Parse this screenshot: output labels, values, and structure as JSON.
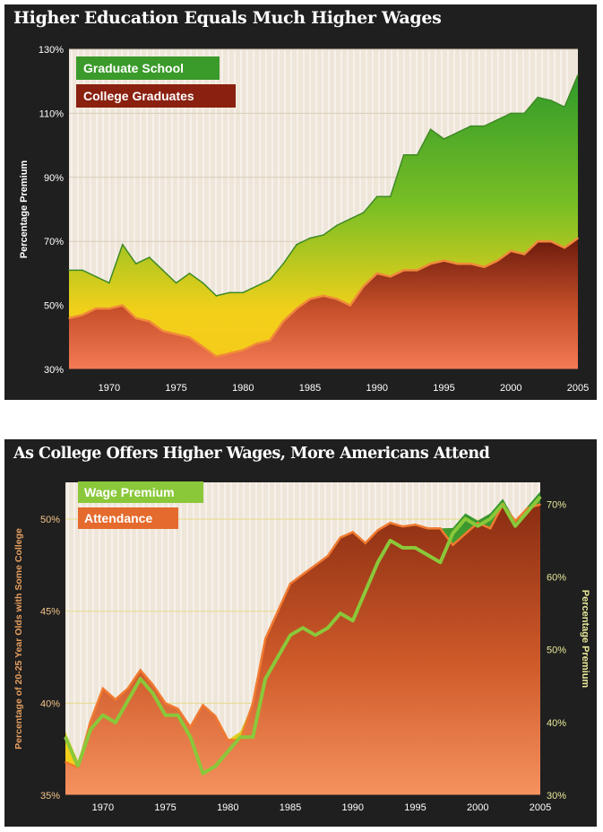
{
  "chart_data": [
    {
      "type": "area",
      "title": "Higher Education Equals Much Higher Wages",
      "xlabel": "",
      "ylabel": "Percentage Premium",
      "xlim": [
        1967,
        2005
      ],
      "ylim": [
        30,
        130
      ],
      "yticks": [
        "30%",
        "50%",
        "70%",
        "90%",
        "110%",
        "130%"
      ],
      "ytick_values": [
        30,
        50,
        70,
        90,
        110,
        130
      ],
      "xticks": [
        "1970",
        "1975",
        "1980",
        "1985",
        "1990",
        "1995",
        "2000",
        "2005"
      ],
      "xtick_values": [
        1970,
        1975,
        1980,
        1985,
        1990,
        1995,
        2000,
        2005
      ],
      "legend": [
        "Graduate School",
        "College Graduates"
      ],
      "colors": {
        "graduate": "#3a9a2a",
        "college": "#8a2010",
        "grad_light": "#f2d01a",
        "college_light": "#f37a55"
      },
      "x": [
        1967,
        1968,
        1969,
        1970,
        1971,
        1972,
        1973,
        1974,
        1975,
        1976,
        1977,
        1978,
        1979,
        1980,
        1981,
        1982,
        1983,
        1984,
        1985,
        1986,
        1987,
        1988,
        1989,
        1990,
        1991,
        1992,
        1993,
        1994,
        1995,
        1996,
        1997,
        1998,
        1999,
        2000,
        2001,
        2002,
        2003,
        2004,
        2005
      ],
      "series": [
        {
          "name": "Graduate School",
          "values": [
            61,
            61,
            59,
            57,
            69,
            63,
            65,
            61,
            57,
            60,
            57,
            53,
            54,
            54,
            56,
            58,
            63,
            69,
            71,
            72,
            75,
            77,
            79,
            84,
            84,
            97,
            97,
            105,
            102,
            104,
            106,
            106,
            108,
            110,
            110,
            115,
            114,
            112,
            122
          ]
        },
        {
          "name": "College Graduates",
          "values": [
            46,
            47,
            49,
            49,
            50,
            46,
            45,
            42,
            41,
            40,
            37,
            34,
            35,
            36,
            38,
            39,
            45,
            49,
            52,
            53,
            52,
            50,
            56,
            60,
            59,
            61,
            61,
            63,
            64,
            63,
            63,
            62,
            64,
            67,
            66,
            70,
            70,
            68,
            71
          ]
        }
      ]
    },
    {
      "type": "area",
      "title": "As College Offers Higher Wages, More Americans Attend",
      "xlabel": "",
      "ylabel": "Percentage of 20-25 Year Olds with Some College",
      "ylabel_right": "Percentage Premium",
      "xlim": [
        1967,
        2005
      ],
      "ylim": [
        35,
        52
      ],
      "ylim_right": [
        30,
        73
      ],
      "yticks": [
        "35%",
        "40%",
        "45%",
        "50%"
      ],
      "ytick_values": [
        35,
        40,
        45,
        50
      ],
      "yticks_right": [
        "30%",
        "40%",
        "50%",
        "60%",
        "70%"
      ],
      "ytick_values_right": [
        30,
        40,
        50,
        60,
        70
      ],
      "xticks": [
        "1970",
        "1975",
        "1980",
        "1985",
        "1990",
        "1995",
        "2000",
        "2005"
      ],
      "xtick_values": [
        1970,
        1975,
        1980,
        1985,
        1990,
        1995,
        2000,
        2005
      ],
      "legend": [
        "Wage Premium",
        "Attendance"
      ],
      "colors": {
        "premium": "#8ac83a",
        "attendance": "#e56a2d",
        "premium_dark": "#2e8f2e",
        "premium_light": "#f2d01a"
      },
      "x": [
        1967,
        1968,
        1969,
        1970,
        1971,
        1972,
        1973,
        1974,
        1975,
        1976,
        1977,
        1978,
        1979,
        1980,
        1981,
        1982,
        1983,
        1984,
        1985,
        1986,
        1987,
        1988,
        1989,
        1990,
        1991,
        1992,
        1993,
        1994,
        1995,
        1996,
        1997,
        1998,
        1999,
        2000,
        2001,
        2002,
        2003,
        2004,
        2005
      ],
      "series": [
        {
          "name": "Wage Premium",
          "axis": "right",
          "values": [
            38,
            34,
            39,
            41,
            40,
            43,
            46,
            44,
            41,
            41,
            38,
            33,
            34,
            36,
            38,
            38,
            46,
            49,
            52,
            53,
            52,
            53,
            55,
            54,
            58,
            62,
            65,
            64,
            64,
            63,
            62,
            66,
            68,
            67,
            68,
            70,
            67,
            69,
            71
          ]
        },
        {
          "name": "Attendance",
          "axis": "left",
          "values": [
            36.8,
            36.5,
            39.0,
            40.8,
            40.2,
            40.8,
            41.8,
            41.0,
            40.0,
            39.7,
            38.7,
            39.9,
            39.3,
            38.0,
            38.0,
            40.0,
            43.5,
            45.0,
            46.5,
            47.0,
            47.5,
            48.0,
            49.0,
            49.3,
            48.7,
            49.4,
            49.8,
            49.6,
            49.7,
            49.5,
            49.5,
            48.6,
            49.2,
            49.8,
            49.5,
            50.8,
            49.9,
            50.6,
            50.8
          ]
        }
      ]
    }
  ]
}
